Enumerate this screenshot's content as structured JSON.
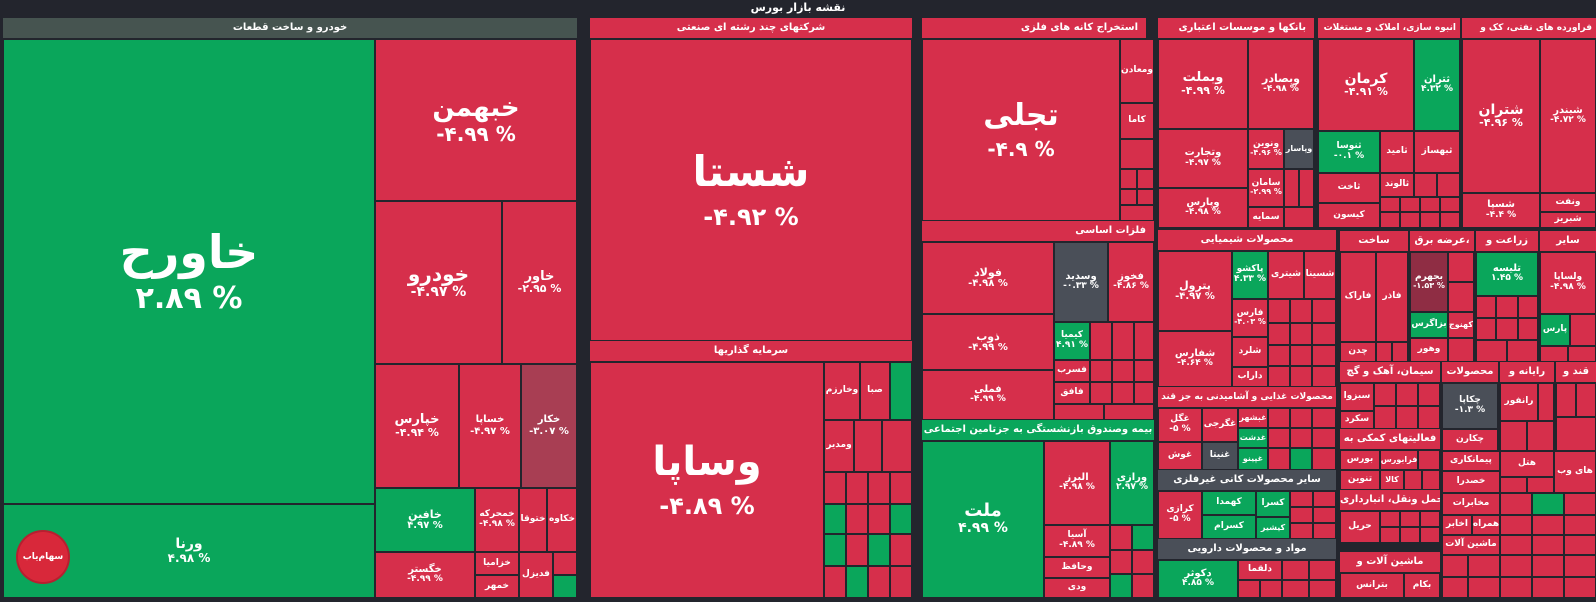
{
  "page_title": "نقشه بازار بورس",
  "logo_text": "سهام‌یاب",
  "sectors": {
    "auto": "خودرو و ساخت قطعات",
    "multi": "شرکتهای چند رشته ای صنعتی",
    "mining": "استخراج کانه های فلزی",
    "banks": "بانکها و موسسات اعتباری",
    "building": "انبوه سازی، املاک و مستغلات",
    "oil": "فراورده های نفتی، کک و",
    "invest": "سرمایه گذاریها",
    "metals": "فلزات اساسی",
    "chem": "محصولات شیمیایی",
    "construct": "ساخت",
    "supply": "عرضه برق،",
    "agri": "زراعت و",
    "other": "سایر",
    "food": "محصولات غذایی و آشامیدنی به جز قند",
    "cement": "سیمان، آهک و گچ",
    "insurance": "بیمه وصندوق بازنشستگی به جزتامین اجتماعی",
    "nonmetal": "سایر محصولات کانی غیرفلزی",
    "pharma": "مواد و محصولات دارویی",
    "support": "فعالیتهای کمکی به",
    "transport": "حمل ونقل، انبارداری",
    "machinery": "ماشین آلات و",
    "radio": "رایانه و",
    "sugar": "قند و",
    "products": "محصولات"
  },
  "tiles": {
    "khavarh": {
      "sym": "خاورح",
      "pct": "۲.۸۹ %"
    },
    "khabhman": {
      "sym": "خبهمن",
      "pct": "-۴.۹۹ %"
    },
    "khodro": {
      "sym": "خودرو",
      "pct": "-۴.۹۷ %"
    },
    "khavar": {
      "sym": "خاور",
      "pct": "-۲.۹۵ %"
    },
    "khepars": {
      "sym": "خپارس",
      "pct": "-۴.۹۴ %"
    },
    "khsapa": {
      "sym": "خساپا",
      "pct": "-۴.۹۷ %"
    },
    "khkar": {
      "sym": "خکار",
      "pct": "-۳.۰۷ %"
    },
    "khafin": {
      "sym": "خافین",
      "pct": "۴.۹۷ %"
    },
    "khemehrke": {
      "sym": "خمحرکه",
      "pct": "-۴.۹۸ %"
    },
    "khtoqa": {
      "sym": "ختوقا"
    },
    "khekaveh": {
      "sym": "خکاوه"
    },
    "khegostar": {
      "sym": "خگستر",
      "pct": "-۴.۹۹ %"
    },
    "khzamia": {
      "sym": "خزامیا"
    },
    "khmehr": {
      "sym": "خمهر"
    },
    "fdizel": {
      "sym": "فدیزل"
    },
    "varna": {
      "sym": "ورنا",
      "pct": "۴.۹۸ %"
    },
    "shasta": {
      "sym": "شستا",
      "pct": "-۴.۹۲ %"
    },
    "vsapa": {
      "sym": "وساپا",
      "pct": "-۴.۸۹ %"
    },
    "vkharazm": {
      "sym": "وخارزم"
    },
    "seba": {
      "sym": "صبا"
    },
    "vmadir": {
      "sym": "ومدیر"
    },
    "tajali": {
      "sym": "تجلی",
      "pct": "-۴.۹ %"
    },
    "vmaadan": {
      "sym": "ومعادن"
    },
    "kama": {
      "sym": "کاما"
    },
    "vbemellat": {
      "sym": "وبملت",
      "pct": "-۴.۹۹ %"
    },
    "vbsader": {
      "sym": "وبصادر",
      "pct": "-۴.۹۸ %"
    },
    "vtejarat": {
      "sym": "وتجارت",
      "pct": "-۴.۹۷ %"
    },
    "vnovin": {
      "sym": "ونوین",
      "pct": "-۴.۹۶ %"
    },
    "vpasar": {
      "sym": "وپاسار"
    },
    "saman": {
      "sym": "سامان",
      "pct": "-۲.۹۹ %"
    },
    "vparis": {
      "sym": "وپارس",
      "pct": "-۴.۹۸ %"
    },
    "samayeh": {
      "sym": "سمایه"
    },
    "kerman": {
      "sym": "کرمان",
      "pct": "-۴.۹۱ %"
    },
    "tehran": {
      "sym": "ثتران",
      "pct": "۴.۳۲ %"
    },
    "sousa": {
      "sym": "ثنوسا",
      "pct": "-۰.۱ %"
    },
    "thamid": {
      "sym": "ثامید"
    },
    "behsaz": {
      "sym": "ثبهساز"
    },
    "thalvand": {
      "sym": "ثالوند"
    },
    "thakht": {
      "sym": "ثاخت"
    },
    "keyson": {
      "sym": "کیسون"
    },
    "shetran": {
      "sym": "شتران",
      "pct": "-۴.۹۶ %"
    },
    "shebandar": {
      "sym": "شبندر",
      "pct": "-۴.۷۲ %"
    },
    "shespa": {
      "sym": "شسپا",
      "pct": "-۴.۴ %"
    },
    "vanaft": {
      "sym": "ونفت"
    },
    "shebriz": {
      "sym": "شبریز"
    },
    "foolad": {
      "sym": "فولاد",
      "pct": "-۴.۹۸ %"
    },
    "vsepid": {
      "sym": "وسدید",
      "pct": "-۰.۳۳ %"
    },
    "fkhooz": {
      "sym": "فخوز",
      "pct": "-۴.۸۶ %"
    },
    "zob": {
      "sym": "ذوب",
      "pct": "-۴.۹۹ %"
    },
    "kimia": {
      "sym": "کیمیا",
      "pct": "۴.۹۱ %"
    },
    "fmeli": {
      "sym": "فملی",
      "pct": "-۴.۹۹ %"
    },
    "fesarb": {
      "sym": "فسرب"
    },
    "ffaq": {
      "sym": "فافق"
    },
    "petrol": {
      "sym": "پترول",
      "pct": "-۴.۹۷ %"
    },
    "pakesh": {
      "sym": "پاکشو",
      "pct": "۴.۳۳ %"
    },
    "shitran": {
      "sym": "شیتری"
    },
    "shsina": {
      "sym": "شسینا"
    },
    "farabi": {
      "sym": "فارس",
      "pct": "-۴.۰۳ %"
    },
    "shafaras": {
      "sym": "شفارس",
      "pct": "-۴.۶۴ %"
    },
    "sharad": {
      "sym": "شلرد"
    },
    "daraab": {
      "sym": "داراب"
    },
    "faryak": {
      "sym": "فاراک"
    },
    "fader": {
      "sym": "فاذر"
    },
    "chadan": {
      "sym": "چدن"
    },
    "bjahrom": {
      "sym": "بجهرم",
      "pct": "-۱.۵۳ %"
    },
    "bazagros": {
      "sym": "بزاگرس"
    },
    "bkahnuj": {
      "sym": "کهنوج"
    },
    "vahour": {
      "sym": "وهور"
    },
    "telise": {
      "sym": "تلیسه",
      "pct": "۱.۴۵ %"
    },
    "vlspa": {
      "sym": "ولساپا",
      "pct": "-۴.۹۸ %"
    },
    "pars": {
      "sym": "پارس"
    },
    "ghegl": {
      "sym": "غگل",
      "pct": "-۵ %"
    },
    "gheghorji": {
      "sym": "غگرجی"
    },
    "ghbshahr": {
      "sym": "غبشهر"
    },
    "ghdasht": {
      "sym": "غدشت"
    },
    "ghoosh": {
      "sym": "غوش"
    },
    "ghnita": {
      "sym": "غنیتا"
    },
    "ghpino": {
      "sym": "غپینو"
    },
    "sebzva": {
      "sym": "سبزوا"
    },
    "sekard": {
      "sym": "سکرد"
    },
    "bourse": {
      "sym": "بورس"
    },
    "farabourse": {
      "sym": "فرابورس"
    },
    "tvin": {
      "sym": "تنوین"
    },
    "kala": {
      "sym": "کالا"
    },
    "hariz": {
      "sym": "حریل"
    },
    "chakapa": {
      "sym": "چکاپا",
      "pct": "-۱.۳ %"
    },
    "ranfor": {
      "sym": "رانفور"
    },
    "chakaran": {
      "sym": "چکارن"
    },
    "hetal": {
      "sym": "هتل"
    },
    "kharrjah": {
      "sym": "های وب"
    },
    "pimnaakari": {
      "sym": "پیمانکاری"
    },
    "khesdara": {
      "sym": "خصدرا"
    },
    "mokhaberat": {
      "sym": "مخابرات"
    },
    "akhabar": {
      "sym": "اخابر"
    },
    "hamrah": {
      "sym": "همراه"
    },
    "mashinalat": {
      "sym": "ماشین آلات"
    },
    "bterans": {
      "sym": "بترانس"
    },
    "bkam": {
      "sym": "بکام"
    },
    "melat": {
      "sym": "ملت",
      "pct": "۴.۹۹ %"
    },
    "albarz": {
      "sym": "البرز",
      "pct": "-۴.۹۸ %"
    },
    "vrazi": {
      "sym": "ورازی",
      "pct": "۲.۹۷ %"
    },
    "asia": {
      "sym": "آسیا",
      "pct": "-۴.۸۹ %"
    },
    "vhafez": {
      "sym": "وحافظ"
    },
    "vadi": {
      "sym": "ودی"
    },
    "kerazi": {
      "sym": "کرازی",
      "pct": "-۵ %"
    },
    "kahmda": {
      "sym": "کهمدا"
    },
    "kesra": {
      "sym": "کسرا"
    },
    "kesram": {
      "sym": "کسرام"
    },
    "kishir": {
      "sym": "کیشیر"
    },
    "dkosar": {
      "sym": "دکوثر",
      "pct": "۴.۸۵ %"
    },
    "dalgha": {
      "sym": "دلقما"
    }
  }
}
